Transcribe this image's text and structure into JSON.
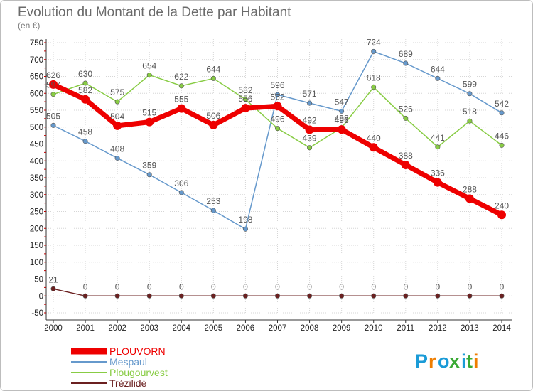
{
  "chart_data": {
    "type": "line",
    "title": "Evolution du Montant de la Dette par Habitant",
    "subtitle": "(en €)",
    "x": [
      "2000",
      "2001",
      "2002",
      "2003",
      "2004",
      "2005",
      "2006",
      "2007",
      "2008",
      "2009",
      "2010",
      "2011",
      "2012",
      "2013",
      "2014"
    ],
    "ylim": [
      -50,
      750
    ],
    "yticks": [
      -50,
      0,
      50,
      100,
      150,
      200,
      250,
      300,
      350,
      400,
      450,
      500,
      550,
      600,
      650,
      700,
      750
    ],
    "grid": true,
    "legend_position": "bottom-left",
    "series": [
      {
        "name": "PLOUVORN",
        "color": "#ee0000",
        "values": [
          626,
          582,
          504,
          515,
          555,
          506,
          556,
          562,
          492,
          493,
          440,
          388,
          336,
          288,
          240
        ],
        "labels": [
          "626",
          "582",
          "504",
          "515",
          "555",
          "506",
          "556",
          "562",
          "492",
          "493",
          "440",
          "388",
          "336",
          "288",
          "240"
        ]
      },
      {
        "name": "Mespaul",
        "color": "#6699cc",
        "values": [
          505,
          458,
          408,
          359,
          306,
          253,
          198,
          596,
          571,
          547,
          724,
          689,
          644,
          599,
          542
        ],
        "labels": [
          "505",
          "458",
          "408",
          "359",
          "306",
          "253",
          "198",
          "596",
          "571",
          "547",
          "724",
          "689",
          "644",
          "599",
          "542"
        ]
      },
      {
        "name": "Plougourvest",
        "color": "#88cc44",
        "values": [
          597,
          630,
          575,
          654,
          622,
          644,
          582,
          496,
          439,
          498,
          618,
          526,
          441,
          518,
          446
        ],
        "labels": [
          "597",
          "630",
          "575",
          "654",
          "622",
          "644",
          "582",
          "496",
          "439",
          "498",
          "618",
          "526",
          "441",
          "518",
          "446"
        ]
      },
      {
        "name": "Trézilidé",
        "color": "#6b2020",
        "values": [
          21,
          0,
          0,
          0,
          0,
          0,
          0,
          0,
          0,
          0,
          0,
          0,
          0,
          0,
          0
        ],
        "labels": [
          "21",
          "0",
          "0",
          "0",
          "0",
          "0",
          "0",
          "0",
          "0",
          "0",
          "0",
          "0",
          "0",
          "0",
          "0"
        ]
      }
    ]
  },
  "logo": {
    "text": "Proxiti"
  }
}
